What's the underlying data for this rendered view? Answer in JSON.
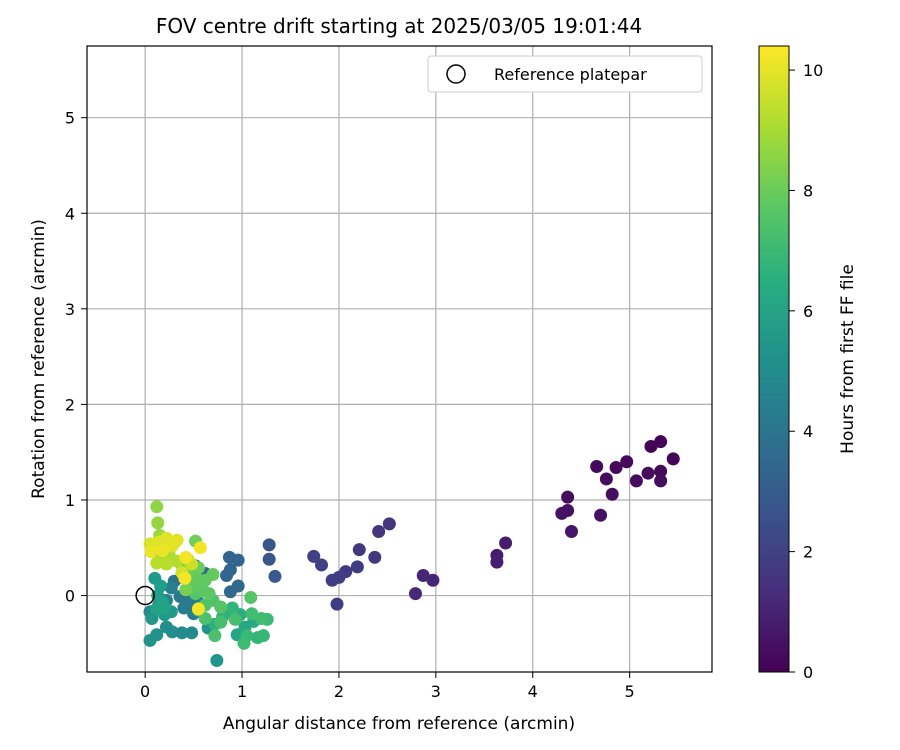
{
  "chart_data": {
    "type": "scatter",
    "title": "FOV centre drift starting at 2025/03/05 19:01:44",
    "xlabel": "Angular distance from reference (arcmin)",
    "ylabel": "Rotation from reference (arcmin)",
    "xlim": [
      -0.6,
      5.85
    ],
    "ylim": [
      -0.8,
      5.75
    ],
    "xticks": [
      0,
      1,
      2,
      3,
      4,
      5
    ],
    "yticks": [
      0,
      1,
      2,
      3,
      4,
      5
    ],
    "grid": true,
    "legend": {
      "placement": "top-right",
      "entries": [
        "Reference platepar"
      ]
    },
    "reference_point": {
      "name": "Reference platepar",
      "x": 0,
      "y": 0,
      "marker": "open-circle"
    },
    "colorbar": {
      "label": "Hours from first FF file",
      "range": [
        0,
        10.4
      ],
      "ticks": [
        0,
        2,
        4,
        6,
        8,
        10
      ],
      "colormap": "viridis"
    },
    "points": [
      {
        "x": 5.32,
        "y": 1.61,
        "h": 0.1
      },
      {
        "x": 5.22,
        "y": 1.56,
        "h": 0.1
      },
      {
        "x": 5.45,
        "y": 1.43,
        "h": 0.1
      },
      {
        "x": 4.97,
        "y": 1.4,
        "h": 0.2
      },
      {
        "x": 4.66,
        "y": 1.35,
        "h": 0.2
      },
      {
        "x": 4.86,
        "y": 1.34,
        "h": 0.2
      },
      {
        "x": 5.32,
        "y": 1.3,
        "h": 0.2
      },
      {
        "x": 5.19,
        "y": 1.28,
        "h": 0.3
      },
      {
        "x": 4.76,
        "y": 1.22,
        "h": 0.3
      },
      {
        "x": 5.07,
        "y": 1.2,
        "h": 0.3
      },
      {
        "x": 5.32,
        "y": 1.2,
        "h": 0.3
      },
      {
        "x": 4.82,
        "y": 1.06,
        "h": 0.4
      },
      {
        "x": 4.36,
        "y": 1.03,
        "h": 0.4
      },
      {
        "x": 4.3,
        "y": 0.86,
        "h": 0.5
      },
      {
        "x": 4.36,
        "y": 0.89,
        "h": 0.5
      },
      {
        "x": 4.7,
        "y": 0.84,
        "h": 0.5
      },
      {
        "x": 4.4,
        "y": 0.67,
        "h": 0.6
      },
      {
        "x": 3.72,
        "y": 0.55,
        "h": 0.8
      },
      {
        "x": 3.63,
        "y": 0.42,
        "h": 0.8
      },
      {
        "x": 3.63,
        "y": 0.35,
        "h": 0.9
      },
      {
        "x": 2.87,
        "y": 0.21,
        "h": 1.1
      },
      {
        "x": 2.97,
        "y": 0.16,
        "h": 1.1
      },
      {
        "x": 2.79,
        "y": 0.02,
        "h": 1.2
      },
      {
        "x": 2.52,
        "y": 0.75,
        "h": 1.6
      },
      {
        "x": 2.41,
        "y": 0.67,
        "h": 1.6
      },
      {
        "x": 2.21,
        "y": 0.48,
        "h": 1.7
      },
      {
        "x": 2.37,
        "y": 0.4,
        "h": 1.7
      },
      {
        "x": 2.19,
        "y": 0.3,
        "h": 1.8
      },
      {
        "x": 2.07,
        "y": 0.25,
        "h": 1.8
      },
      {
        "x": 2.0,
        "y": 0.19,
        "h": 1.9
      },
      {
        "x": 1.93,
        "y": 0.16,
        "h": 1.9
      },
      {
        "x": 1.98,
        "y": -0.09,
        "h": 1.9
      },
      {
        "x": 1.74,
        "y": 0.41,
        "h": 2.0
      },
      {
        "x": 1.82,
        "y": 0.32,
        "h": 2.0
      },
      {
        "x": 1.28,
        "y": 0.53,
        "h": 2.8
      },
      {
        "x": 1.28,
        "y": 0.38,
        "h": 2.8
      },
      {
        "x": 1.34,
        "y": 0.2,
        "h": 2.9
      },
      {
        "x": 0.87,
        "y": 0.4,
        "h": 3.3
      },
      {
        "x": 0.96,
        "y": 0.37,
        "h": 3.3
      },
      {
        "x": 0.88,
        "y": 0.27,
        "h": 3.4
      },
      {
        "x": 0.84,
        "y": 0.21,
        "h": 3.4
      },
      {
        "x": 0.96,
        "y": 0.1,
        "h": 3.5
      },
      {
        "x": 0.88,
        "y": 0.04,
        "h": 3.5
      },
      {
        "x": 0.62,
        "y": 0.23,
        "h": 3.7
      },
      {
        "x": 0.52,
        "y": 0.31,
        "h": 3.8
      },
      {
        "x": 0.45,
        "y": 0.26,
        "h": 3.8
      },
      {
        "x": 0.38,
        "y": 0.19,
        "h": 4.0
      },
      {
        "x": 0.3,
        "y": 0.15,
        "h": 4.0
      },
      {
        "x": 0.42,
        "y": 0.04,
        "h": 4.1
      },
      {
        "x": 0.36,
        "y": -0.01,
        "h": 4.2
      },
      {
        "x": 0.47,
        "y": -0.07,
        "h": 4.2
      },
      {
        "x": 0.4,
        "y": -0.13,
        "h": 4.3
      },
      {
        "x": 0.5,
        "y": -0.19,
        "h": 4.3
      },
      {
        "x": 0.56,
        "y": -0.08,
        "h": 4.4
      },
      {
        "x": 0.27,
        "y": 0.08,
        "h": 4.5
      },
      {
        "x": 0.22,
        "y": -0.05,
        "h": 4.6
      },
      {
        "x": 0.14,
        "y": -0.1,
        "h": 4.8
      },
      {
        "x": 0.05,
        "y": -0.17,
        "h": 4.9
      },
      {
        "x": 0.38,
        "y": -0.39,
        "h": 5.0
      },
      {
        "x": 0.48,
        "y": -0.39,
        "h": 5.0
      },
      {
        "x": 0.28,
        "y": -0.38,
        "h": 5.1
      },
      {
        "x": 0.22,
        "y": -0.33,
        "h": 5.1
      },
      {
        "x": 0.12,
        "y": -0.41,
        "h": 5.2
      },
      {
        "x": 0.05,
        "y": -0.47,
        "h": 5.3
      },
      {
        "x": 0.65,
        "y": -0.34,
        "h": 5.3
      },
      {
        "x": 0.74,
        "y": -0.68,
        "h": 5.4
      },
      {
        "x": 0.07,
        "y": -0.24,
        "h": 5.5
      },
      {
        "x": 0.2,
        "y": -0.2,
        "h": 5.6
      },
      {
        "x": 0.27,
        "y": -0.17,
        "h": 5.6
      },
      {
        "x": 0.1,
        "y": 0.18,
        "h": 5.7
      },
      {
        "x": 0.16,
        "y": 0.1,
        "h": 5.8
      },
      {
        "x": 0.13,
        "y": 0.0,
        "h": 5.8
      },
      {
        "x": 0.18,
        "y": -0.07,
        "h": 5.9
      },
      {
        "x": 0.12,
        "y": -0.14,
        "h": 6.0
      },
      {
        "x": 0.2,
        "y": -0.13,
        "h": 6.0
      },
      {
        "x": 0.95,
        "y": -0.41,
        "h": 6.1
      },
      {
        "x": 1.03,
        "y": -0.33,
        "h": 6.2
      },
      {
        "x": 1.12,
        "y": -0.27,
        "h": 6.3
      },
      {
        "x": 0.98,
        "y": -0.2,
        "h": 6.4
      },
      {
        "x": 0.83,
        "y": -0.17,
        "h": 6.5
      },
      {
        "x": 0.72,
        "y": -0.3,
        "h": 6.6
      },
      {
        "x": 0.8,
        "y": -0.22,
        "h": 6.7
      },
      {
        "x": 0.9,
        "y": -0.13,
        "h": 6.8
      },
      {
        "x": 1.16,
        "y": -0.44,
        "h": 6.9
      },
      {
        "x": 1.22,
        "y": -0.42,
        "h": 7.0
      },
      {
        "x": 1.05,
        "y": -0.42,
        "h": 7.0
      },
      {
        "x": 1.02,
        "y": -0.5,
        "h": 7.1
      },
      {
        "x": 1.26,
        "y": -0.25,
        "h": 7.1
      },
      {
        "x": 1.2,
        "y": -0.24,
        "h": 7.2
      },
      {
        "x": 1.1,
        "y": -0.19,
        "h": 7.2
      },
      {
        "x": 0.93,
        "y": -0.25,
        "h": 7.3
      },
      {
        "x": 0.78,
        "y": -0.28,
        "h": 7.3
      },
      {
        "x": 0.72,
        "y": -0.42,
        "h": 7.4
      },
      {
        "x": 0.62,
        "y": -0.24,
        "h": 7.4
      },
      {
        "x": 0.55,
        "y": -0.15,
        "h": 7.5
      },
      {
        "x": 0.62,
        "y": -0.1,
        "h": 7.5
      },
      {
        "x": 0.7,
        "y": -0.05,
        "h": 7.5
      },
      {
        "x": 0.78,
        "y": -0.12,
        "h": 7.6
      },
      {
        "x": 1.09,
        "y": -0.02,
        "h": 7.6
      },
      {
        "x": 0.52,
        "y": 0.02,
        "h": 7.6
      },
      {
        "x": 0.6,
        "y": 0.05,
        "h": 7.7
      },
      {
        "x": 0.66,
        "y": 0.02,
        "h": 7.7
      },
      {
        "x": 0.48,
        "y": 0.09,
        "h": 7.8
      },
      {
        "x": 0.56,
        "y": 0.13,
        "h": 7.8
      },
      {
        "x": 0.62,
        "y": 0.16,
        "h": 7.8
      },
      {
        "x": 0.7,
        "y": 0.22,
        "h": 7.9
      },
      {
        "x": 0.52,
        "y": 0.2,
        "h": 7.9
      },
      {
        "x": 0.44,
        "y": 0.24,
        "h": 8.0
      },
      {
        "x": 0.55,
        "y": 0.29,
        "h": 8.0
      },
      {
        "x": 0.38,
        "y": 0.32,
        "h": 8.1
      },
      {
        "x": 0.52,
        "y": 0.57,
        "h": 8.1
      },
      {
        "x": 0.42,
        "y": 0.06,
        "h": 8.2
      },
      {
        "x": 0.12,
        "y": 0.93,
        "h": 8.6
      },
      {
        "x": 0.13,
        "y": 0.76,
        "h": 8.7
      },
      {
        "x": 0.15,
        "y": 0.63,
        "h": 8.8
      },
      {
        "x": 0.2,
        "y": 0.56,
        "h": 8.9
      },
      {
        "x": 0.09,
        "y": 0.48,
        "h": 9.0
      },
      {
        "x": 0.14,
        "y": 0.44,
        "h": 9.1
      },
      {
        "x": 0.25,
        "y": 0.42,
        "h": 9.1
      },
      {
        "x": 0.33,
        "y": 0.36,
        "h": 9.2
      },
      {
        "x": 0.12,
        "y": 0.34,
        "h": 9.3
      },
      {
        "x": 0.22,
        "y": 0.33,
        "h": 9.3
      },
      {
        "x": 0.3,
        "y": 0.55,
        "h": 9.4
      },
      {
        "x": 0.44,
        "y": 0.38,
        "h": 9.5
      },
      {
        "x": 0.48,
        "y": 0.33,
        "h": 9.6
      },
      {
        "x": 0.38,
        "y": 0.24,
        "h": 9.7
      },
      {
        "x": 0.05,
        "y": 0.54,
        "h": 9.8
      },
      {
        "x": 0.14,
        "y": 0.56,
        "h": 9.9
      },
      {
        "x": 0.22,
        "y": 0.6,
        "h": 9.9
      },
      {
        "x": 0.28,
        "y": 0.52,
        "h": 10.0
      },
      {
        "x": 0.33,
        "y": 0.58,
        "h": 10.0
      },
      {
        "x": 0.06,
        "y": 0.46,
        "h": 10.1
      },
      {
        "x": 0.18,
        "y": 0.47,
        "h": 10.1
      },
      {
        "x": 0.42,
        "y": 0.4,
        "h": 10.2
      },
      {
        "x": 0.57,
        "y": 0.5,
        "h": 10.2
      },
      {
        "x": 0.41,
        "y": 0.18,
        "h": 10.3
      },
      {
        "x": 0.55,
        "y": -0.14,
        "h": 10.3
      }
    ]
  }
}
